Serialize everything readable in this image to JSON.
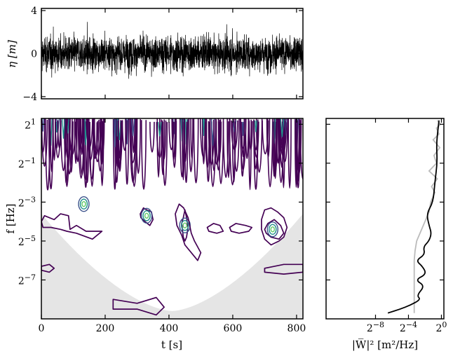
{
  "chart_data": [
    {
      "type": "line",
      "panel": "time-series",
      "ylabel": "η [m]",
      "xlim": [
        0,
        820
      ],
      "ylim": [
        -4.2,
        4.2
      ],
      "yticks": [
        "4",
        "0",
        "−4"
      ],
      "ytick_values": [
        4,
        0,
        -4
      ],
      "series_color": "#000000",
      "sample_rate_hz": 4,
      "description_of_signal": "dense random sea-surface elevation, roughly between -3 and 3"
    },
    {
      "type": "heatmap",
      "panel": "wavelet-power",
      "xlabel": "t [s]",
      "ylabel": "f [Hz]",
      "xlim": [
        0,
        820
      ],
      "flim_log2": [
        -9,
        1.3
      ],
      "xticks": [
        "0",
        "200",
        "400",
        "600",
        "800"
      ],
      "xtick_values": [
        0,
        200,
        400,
        600,
        800
      ],
      "yticks": [
        "2^1",
        "2^−1",
        "2^−3",
        "2^−5",
        "2^−7"
      ],
      "ytick_values_log2": [
        1,
        -1,
        -3,
        -5,
        -7
      ],
      "coi_color": "#e5e5e5",
      "contour_colors": [
        "#440154",
        "#3b528b",
        "#21918c",
        "#5ec962"
      ],
      "contours": [
        {
          "t": [
            0,
            30,
            60,
            90,
            120,
            135,
            150,
            165,
            200,
            215,
            230,
            250,
            290,
            330,
            360,
            400,
            430,
            450,
            500,
            520,
            550,
            600,
            640,
            680,
            720,
            760,
            800,
            820
          ],
          "f": [
            1.5,
            1.3,
            1.5,
            1.2,
            1.4,
            1.3,
            1.5,
            1.2,
            1.45,
            1.3,
            1.4,
            1.2,
            1.5,
            1.3,
            1.4,
            1.2,
            1.5,
            1.3,
            1.4,
            1.2,
            1.5,
            1.3,
            1.4,
            1.2,
            1.5,
            1.3,
            1.4,
            1.5
          ]
        },
        {
          "t": [
            440,
            445,
            450,
            455,
            460,
            455,
            450,
            445,
            440
          ],
          "f": [
            -4.1,
            -3.8,
            -3.4,
            -3.8,
            -4.3,
            -4.8,
            -5.0,
            -4.8,
            -4.1
          ]
        },
        {
          "t": [
            700,
            710,
            730,
            750,
            760,
            745,
            720,
            705,
            700
          ],
          "f": [
            -4.4,
            -4.1,
            -3.9,
            -4.2,
            -4.6,
            -4.9,
            -4.8,
            -4.6,
            -4.4
          ]
        },
        {
          "t": [
            310,
            320,
            330,
            345,
            350,
            340,
            325,
            312,
            310
          ],
          "f": [
            -3.6,
            -3.3,
            -3.4,
            -3.5,
            -3.9,
            -4.2,
            -4.0,
            -3.8,
            -3.6
          ]
        },
        {
          "t": [
            225,
            300,
            360,
            385,
            360,
            300,
            225
          ],
          "f": [
            -8.0,
            -8.2,
            -7.9,
            -8.4,
            -8.8,
            -8.5,
            -8.5
          ]
        },
        {
          "t": [
            0,
            25,
            40,
            25,
            0
          ],
          "f": [
            -6.3,
            -6.2,
            -6.4,
            -6.6,
            -6.5
          ]
        },
        {
          "t": [
            700,
            760,
            820,
            820,
            760,
            700
          ],
          "f": [
            -6.4,
            -6.2,
            -6.2,
            -6.6,
            -6.7,
            -6.6
          ]
        }
      ]
    },
    {
      "type": "line",
      "panel": "global-spectrum",
      "xlabel": "|W̅|² [m²/Hz]",
      "xlim_log2": [
        -14,
        0.3
      ],
      "xticks": [
        "2^−8",
        "2^−4",
        "2^0"
      ],
      "xtick_values_log2": [
        -8,
        -4,
        0
      ],
      "series": [
        {
          "name": "",
          "color": "#000000",
          "log2_power": [
            -6.5,
            -5.0,
            -3.8,
            -2.5,
            -3.0,
            -2.0,
            -3.2,
            -1.8,
            -2.3,
            -3.1,
            -2.0,
            -2.2,
            -1.5,
            -1.2,
            -1.5,
            -1.8,
            -1.0,
            -0.8,
            -0.5,
            -0.6,
            -0.4,
            -0.3
          ],
          "log2_freq": [
            -8.7,
            -8.5,
            -8.3,
            -8.0,
            -7.8,
            -7.3,
            -7.0,
            -6.7,
            -6.3,
            -6.0,
            -5.7,
            -5.3,
            -5.0,
            -4.6,
            -4.2,
            -3.6,
            -3.0,
            -2.0,
            -1.0,
            0.0,
            0.8,
            1.2
          ]
        },
        {
          "name": "",
          "color": "#bbbbbb",
          "log2_power": [
            -3.3,
            -3.3,
            -3.3,
            -3.3,
            -3.2,
            -3.0,
            -2.5,
            -2.0,
            -1.5,
            -1.3,
            -0.8,
            -1.2,
            -0.5,
            -1.5,
            -0.6,
            -0.9,
            -0.2,
            -1.0,
            -0.3,
            -0.6,
            -0.1,
            -0.5
          ],
          "log2_freq": [
            -8.7,
            -8.0,
            -7.0,
            -6.0,
            -5.5,
            -5.0,
            -4.5,
            -4.0,
            -3.5,
            -3.0,
            -2.5,
            -2.2,
            -1.8,
            -1.4,
            -1.0,
            -0.6,
            -0.2,
            0.2,
            0.5,
            0.8,
            1.0,
            1.2
          ]
        }
      ]
    }
  ]
}
